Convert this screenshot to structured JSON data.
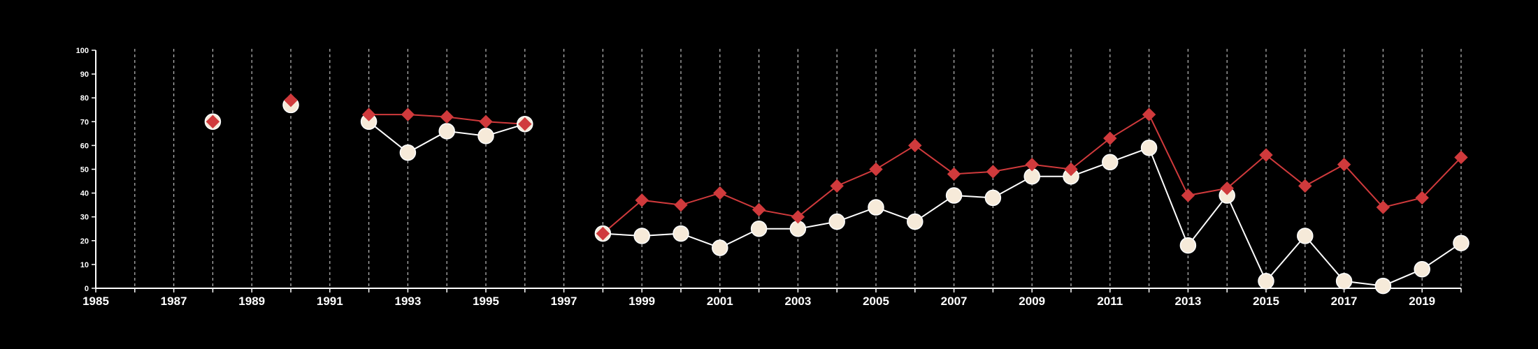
{
  "chart_data": {
    "type": "line",
    "title": "",
    "xlabel": "",
    "ylabel": "",
    "xlim": [
      1985,
      2020
    ],
    "ylim": [
      0,
      100
    ],
    "x_ticks": [
      "1985",
      "1987",
      "1989",
      "1991",
      "1993",
      "1995",
      "1997",
      "1999",
      "2001",
      "2003",
      "2005",
      "2007",
      "2009",
      "2011",
      "2013",
      "2015",
      "2017",
      "2019"
    ],
    "y_ticks": [
      "0",
      "10",
      "20",
      "30",
      "40",
      "50",
      "60",
      "70",
      "80",
      "90",
      "100"
    ],
    "vertical_grid": "dashed-yearly",
    "legend": "none",
    "series": [
      {
        "color": "#d03a3c",
        "marker": "diamond",
        "x": [
          1988,
          1990,
          1992,
          1993,
          1994,
          1995,
          1996,
          1998,
          1999,
          2000,
          2001,
          2002,
          2003,
          2004,
          2005,
          2006,
          2007,
          2008,
          2009,
          2010,
          2011,
          2012,
          2013,
          2014,
          2015,
          2016,
          2017,
          2018,
          2019,
          2020
        ],
        "values": [
          70,
          79,
          73,
          73,
          72,
          70,
          69,
          23,
          37,
          35,
          40,
          33,
          30,
          43,
          50,
          60,
          48,
          49,
          52,
          50,
          63,
          73,
          39,
          42,
          56,
          43,
          52,
          34,
          38,
          55
        ]
      },
      {
        "color": "#ffffff",
        "marker_fill": "#f6ead9",
        "marker": "circle",
        "x": [
          1988,
          1990,
          1992,
          1993,
          1994,
          1995,
          1996,
          1998,
          1999,
          2000,
          2001,
          2002,
          2003,
          2004,
          2005,
          2006,
          2007,
          2008,
          2009,
          2010,
          2011,
          2012,
          2013,
          2014,
          2015,
          2016,
          2017,
          2018,
          2019,
          2020
        ],
        "values": [
          70,
          77,
          70,
          57,
          66,
          64,
          69,
          23,
          22,
          23,
          17,
          25,
          25,
          28,
          34,
          28,
          39,
          38,
          47,
          47,
          53,
          59,
          18,
          39,
          3,
          22,
          3,
          1,
          8,
          19
        ]
      }
    ]
  }
}
